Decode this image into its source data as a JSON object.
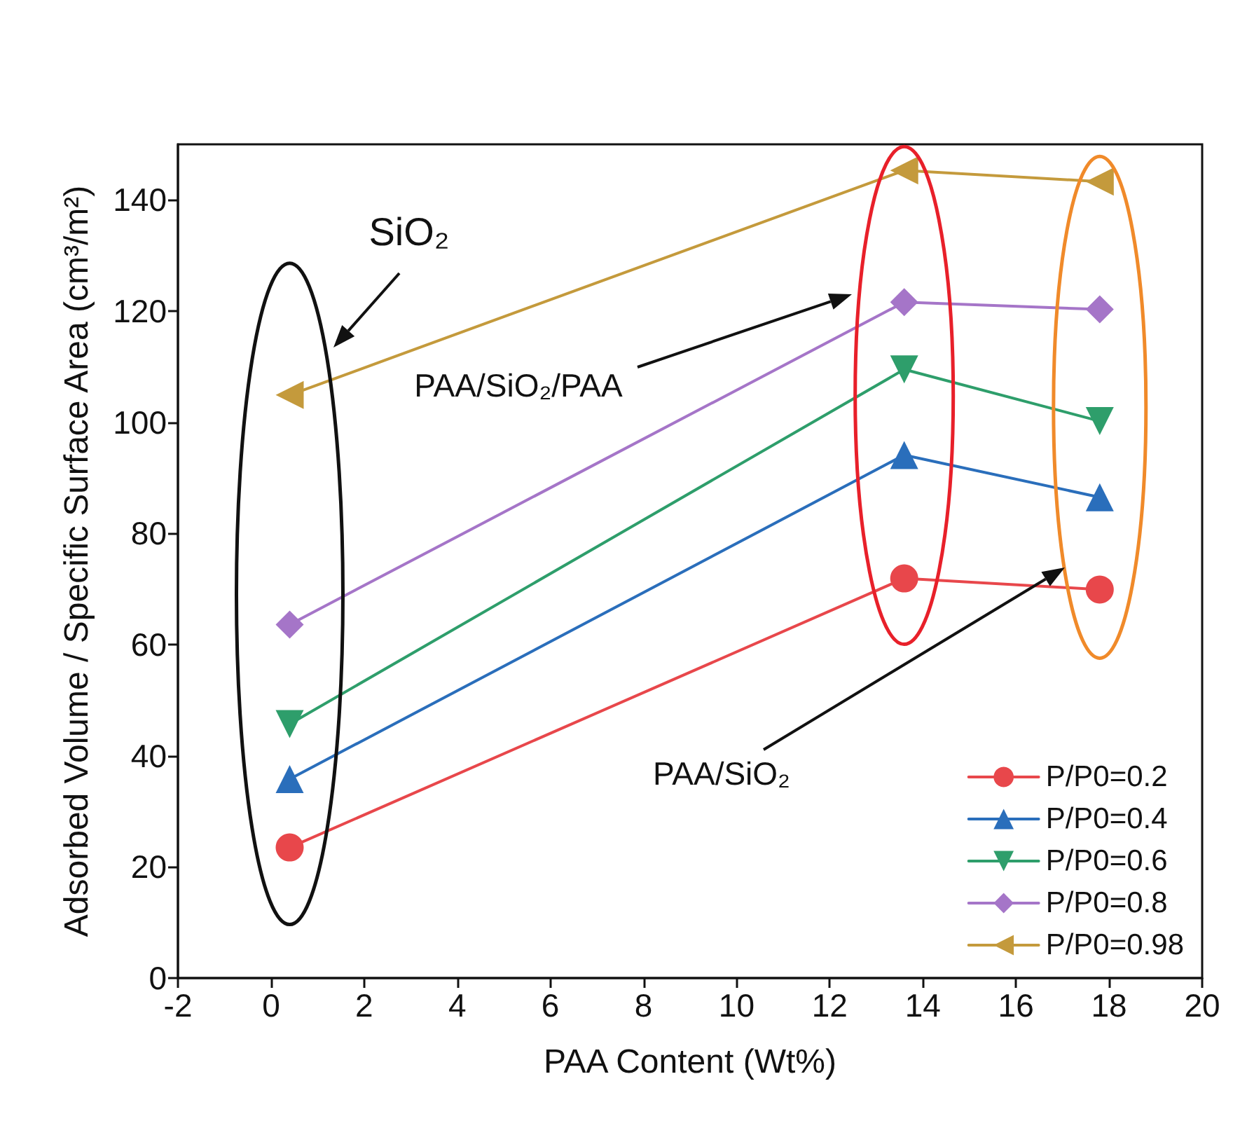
{
  "chart_data": {
    "type": "line",
    "xlabel": "PAA Content (Wt%)",
    "ylabel": "Adsorbed Volume / Specific Surface Area (cm³/m²)",
    "xlim": [
      -2,
      20
    ],
    "xticks": [
      -2,
      0,
      2,
      4,
      6,
      8,
      10,
      12,
      14,
      16,
      18,
      20
    ],
    "ylim": [
      0,
      150
    ],
    "yticks": [
      0,
      20,
      40,
      60,
      80,
      100,
      120,
      140
    ],
    "grid": false,
    "legend": "bottom right",
    "line_style": "solid",
    "series": [
      {
        "name": "P/P0=0.2",
        "color": "#e8474b",
        "marker": "circle",
        "x": [
          0.4,
          13.6,
          17.8
        ],
        "values": [
          23.5,
          71.9,
          69.9
        ]
      },
      {
        "name": "P/P0=0.4",
        "color": "#2a6ebb",
        "marker": "triangle",
        "x": [
          0.4,
          13.6,
          17.8
        ],
        "values": [
          35.8,
          94.1,
          86.5
        ]
      },
      {
        "name": "P/P0=0.6",
        "color": "#2e9e6b",
        "marker": "triangle-down",
        "x": [
          0.4,
          13.6,
          17.8
        ],
        "values": [
          45.7,
          109.5,
          100.2
        ]
      },
      {
        "name": "P/P0=0.8",
        "color": "#a575c8",
        "marker": "diamond",
        "x": [
          0.4,
          13.6,
          17.8
        ],
        "values": [
          63.6,
          121.6,
          120.3
        ]
      },
      {
        "name": "P/P0=0.98",
        "color": "#c49a3c",
        "marker": "triangle-left",
        "x": [
          0.4,
          13.6,
          17.8
        ],
        "values": [
          104.9,
          145.3,
          143.3
        ]
      }
    ],
    "annotations": [
      "SiO₂",
      "PAA/SiO₂/PAA",
      "PAA/SiO₂"
    ]
  }
}
